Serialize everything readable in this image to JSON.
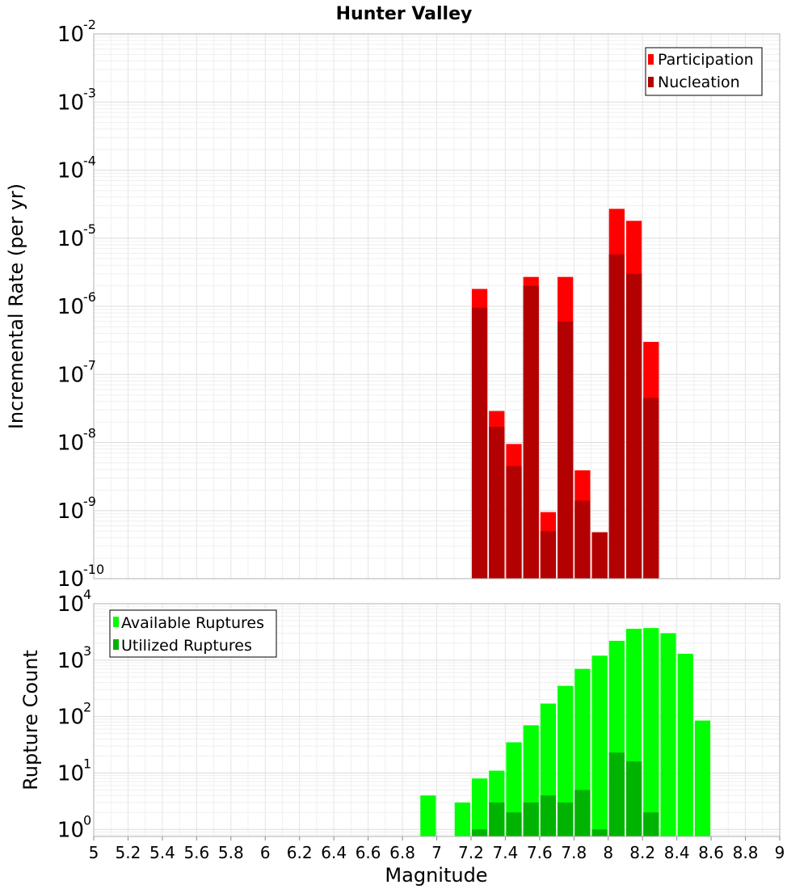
{
  "chart_data": [
    {
      "type": "bar",
      "title": "Hunter Valley",
      "xlabel": "",
      "ylabel": "Incremental Rate (per yr)",
      "yscale": "log",
      "xlim": [
        5,
        9
      ],
      "ylim": [
        1e-10,
        0.01
      ],
      "grid": true,
      "legend_position": "top-right",
      "bar_width": 0.1,
      "series": [
        {
          "name": "Participation",
          "color": "#ff0000",
          "x": [
            7.25,
            7.35,
            7.45,
            7.55,
            7.65,
            7.75,
            7.85,
            7.95,
            8.05,
            8.15,
            8.25
          ],
          "values": [
            1.8e-06,
            2.9e-08,
            9.5e-09,
            2.7e-06,
            9.5e-10,
            2.7e-06,
            3.9e-09,
            4.8e-10,
            2.7e-05,
            1.8e-05,
            3e-07
          ]
        },
        {
          "name": "Nucleation",
          "color": "#b30000",
          "x": [
            7.25,
            7.35,
            7.45,
            7.55,
            7.65,
            7.75,
            7.85,
            7.95,
            8.05,
            8.15,
            8.25
          ],
          "values": [
            9.5e-07,
            1.7e-08,
            4.5e-09,
            2e-06,
            5e-10,
            6e-07,
            1.4e-09,
            4.8e-10,
            5.8e-06,
            3e-06,
            4.5e-08
          ]
        }
      ]
    },
    {
      "type": "bar",
      "title": "",
      "xlabel": "Magnitude",
      "ylabel": "Rupture Count",
      "yscale": "log",
      "xlim": [
        5,
        9
      ],
      "ylim": [
        0.75,
        10000
      ],
      "grid": true,
      "legend_position": "top-left",
      "bar_width": 0.1,
      "series": [
        {
          "name": "Available Ruptures",
          "color": "#00ff00",
          "x": [
            6.95,
            7.15,
            7.25,
            7.35,
            7.45,
            7.55,
            7.65,
            7.75,
            7.85,
            7.95,
            8.05,
            8.15,
            8.25,
            8.35,
            8.45,
            8.55
          ],
          "values": [
            4,
            3,
            8,
            11,
            35,
            70,
            170,
            350,
            700,
            1200,
            2200,
            3600,
            3700,
            3000,
            1300,
            85
          ]
        },
        {
          "name": "Utilized Ruptures",
          "color": "#00b300",
          "x": [
            7.25,
            7.35,
            7.45,
            7.55,
            7.65,
            7.75,
            7.85,
            7.95,
            8.05,
            8.15,
            8.25
          ],
          "values": [
            1,
            3,
            2,
            3,
            4,
            3,
            5,
            1,
            23,
            16,
            2
          ]
        }
      ]
    }
  ],
  "x_ticks": [
    "5",
    "5.2",
    "5.4",
    "5.6",
    "5.8",
    "6",
    "6.2",
    "6.4",
    "6.6",
    "6.8",
    "7",
    "7.2",
    "7.4",
    "7.6",
    "7.8",
    "8",
    "8.2",
    "8.4",
    "8.6",
    "8.8",
    "9"
  ],
  "top_y_ticks": [
    {
      "base": "10",
      "exp": "-2"
    },
    {
      "base": "10",
      "exp": "-3"
    },
    {
      "base": "10",
      "exp": "-4"
    },
    {
      "base": "10",
      "exp": "-5"
    },
    {
      "base": "10",
      "exp": "-6"
    },
    {
      "base": "10",
      "exp": "-7"
    },
    {
      "base": "10",
      "exp": "-8"
    },
    {
      "base": "10",
      "exp": "-9"
    },
    {
      "base": "10",
      "exp": "-10"
    }
  ],
  "bottom_y_ticks": [
    {
      "base": "10",
      "exp": "4"
    },
    {
      "base": "10",
      "exp": "3"
    },
    {
      "base": "10",
      "exp": "2"
    },
    {
      "base": "10",
      "exp": "1"
    },
    {
      "base": "10",
      "exp": "0"
    }
  ]
}
